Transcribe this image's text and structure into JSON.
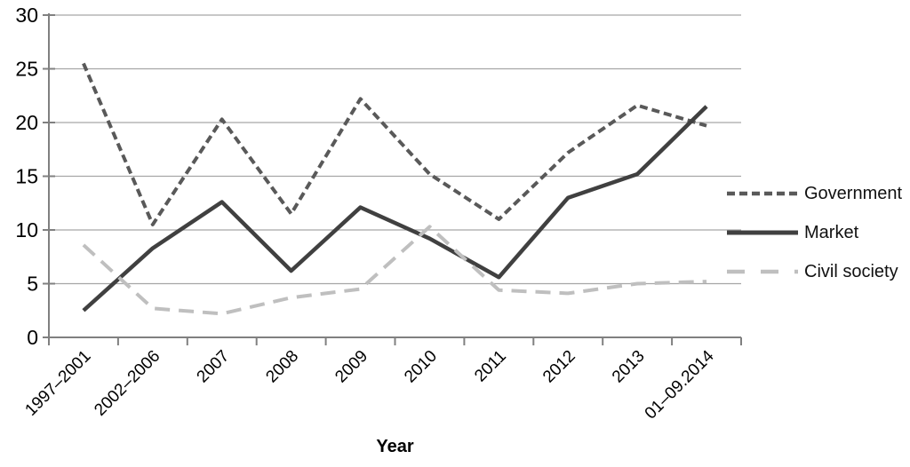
{
  "chart_data": {
    "type": "line",
    "title": "",
    "xlabel": "Year",
    "ylabel": "",
    "ylim": [
      0,
      30
    ],
    "ytick_step": 5,
    "yticks": [
      0,
      5,
      10,
      15,
      20,
      25,
      30
    ],
    "grid": true,
    "legend_position": "right",
    "gridline_color": "#a6a6a6",
    "axis_color": "#808080",
    "text_color": "#000000",
    "background_color": "#ffffff",
    "categories": [
      "1997–2001",
      "2002–2006",
      "2007",
      "2008",
      "2009",
      "2010",
      "2011",
      "2012",
      "2013",
      "01–09.2014"
    ],
    "series": [
      {
        "name": "Government",
        "style": "dashed",
        "color": "#595959",
        "values": [
          25.5,
          10.5,
          20.3,
          11.5,
          22.2,
          15.2,
          11.0,
          17.2,
          21.6,
          19.7
        ]
      },
      {
        "name": "Market",
        "style": "solid",
        "color": "#404040",
        "values": [
          2.5,
          8.3,
          12.6,
          6.2,
          12.1,
          9.2,
          5.6,
          13.0,
          15.2,
          21.5
        ]
      },
      {
        "name": "Civil society",
        "style": "long-dashed",
        "color": "#bfbfbf",
        "values": [
          8.6,
          2.7,
          2.2,
          3.7,
          4.5,
          10.3,
          4.4,
          4.1,
          5.0,
          5.2
        ]
      }
    ]
  }
}
